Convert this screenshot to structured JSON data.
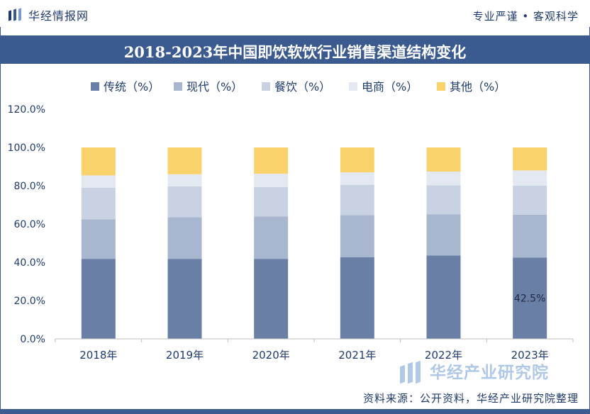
{
  "header": {
    "brand": "华经情报网",
    "tagline": "专业严谨 • 客观科学"
  },
  "footer": {
    "source": "资料来源：公开资料，华经产业研究院整理",
    "watermark": "华经产业研究院"
  },
  "colors": {
    "title_bar": "#3b5a8f",
    "text": "#1f3a6e",
    "series": [
      "#6a7fa6",
      "#a8b6d0",
      "#c9d2e3",
      "#e3e8f1",
      "#f9d26c"
    ]
  },
  "chart_data": {
    "type": "bar",
    "stacked": true,
    "title": "2018-2023年中国即饮软饮行业销售渠道结构变化",
    "categories": [
      "2018年",
      "2019年",
      "2020年",
      "2021年",
      "2022年",
      "2023年"
    ],
    "series": [
      {
        "name": "传统（%）",
        "values": [
          41.8,
          41.8,
          41.8,
          42.7,
          43.6,
          42.5
        ]
      },
      {
        "name": "现代（%）",
        "values": [
          20.6,
          21.8,
          22.1,
          22.0,
          21.4,
          22.4
        ]
      },
      {
        "name": "餐饮（%）",
        "values": [
          16.5,
          16.1,
          15.4,
          15.8,
          15.2,
          15.1
        ]
      },
      {
        "name": "电商（%）",
        "values": [
          6.5,
          6.3,
          7.0,
          6.5,
          7.2,
          8.0
        ]
      },
      {
        "name": "其他（%）",
        "values": [
          14.6,
          14.0,
          13.7,
          13.0,
          12.6,
          12.0
        ]
      }
    ],
    "y_ticks": [
      "0.0%",
      "20.0%",
      "40.0%",
      "60.0%",
      "80.0%",
      "100.0%",
      "120.0%"
    ],
    "ylim": [
      0,
      120
    ],
    "data_label": {
      "category": "2023年",
      "series": "传统（%）",
      "text": "42.5%"
    },
    "legend_position": "top-left",
    "grid": false
  }
}
